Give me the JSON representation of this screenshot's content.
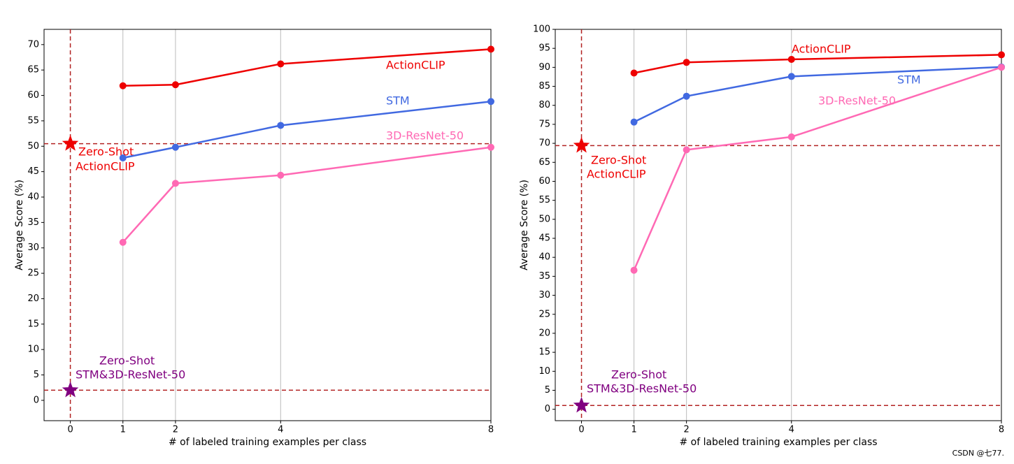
{
  "chart_data": [
    {
      "type": "line",
      "x_label": "# of labeled training examples per class",
      "y_label": "Average Score (%)",
      "xlim": [
        -0.5,
        8
      ],
      "xticks": [
        0,
        1,
        2,
        4,
        8
      ],
      "ylim": [
        -4,
        73
      ],
      "yticks": [
        0,
        5,
        10,
        15,
        20,
        25,
        30,
        35,
        40,
        45,
        50,
        55,
        60,
        65,
        70
      ],
      "grid_x": [
        1,
        2,
        4
      ],
      "x": [
        1,
        2,
        4,
        8
      ],
      "series": [
        {
          "name": "ActionCLIP",
          "color": "#ee0000",
          "values": [
            61.9,
            62.1,
            66.2,
            69.1
          ]
        },
        {
          "name": "STM",
          "color": "#4169e1",
          "values": [
            47.7,
            49.8,
            54.1,
            58.8
          ]
        },
        {
          "name": "3D-ResNet-50",
          "color": "#ff69b4",
          "values": [
            31.1,
            42.7,
            44.3,
            49.8
          ]
        }
      ],
      "zero_shot": [
        {
          "label": [
            "Zero-Shot",
            "ActionCLIP"
          ],
          "value": 50.5,
          "color": "#ee0000"
        },
        {
          "label": [
            "Zero-Shot",
            "STM&3D-ResNet-50"
          ],
          "value": 2,
          "color": "#800080"
        }
      ]
    },
    {
      "type": "line",
      "x_label": "# of labeled training examples per class",
      "y_label": "Average Score (%)",
      "xlim": [
        -0.5,
        8
      ],
      "xticks": [
        0,
        1,
        2,
        4,
        8
      ],
      "ylim": [
        -3,
        100
      ],
      "yticks": [
        0,
        5,
        10,
        15,
        20,
        25,
        30,
        35,
        40,
        45,
        50,
        55,
        60,
        65,
        70,
        75,
        80,
        85,
        90,
        95,
        100
      ],
      "grid_x": [
        1,
        2,
        4
      ],
      "x": [
        1,
        2,
        4,
        8
      ],
      "series": [
        {
          "name": "ActionCLIP",
          "color": "#ee0000",
          "values": [
            88.5,
            91.3,
            92.1,
            93.3
          ]
        },
        {
          "name": "STM",
          "color": "#4169e1",
          "values": [
            75.6,
            82.4,
            87.6,
            90.1
          ]
        },
        {
          "name": "3D-ResNet-50",
          "color": "#ff69b4",
          "values": [
            36.6,
            68.3,
            71.7,
            90.0
          ]
        }
      ],
      "zero_shot": [
        {
          "label": [
            "Zero-Shot",
            "ActionCLIP"
          ],
          "value": 69.4,
          "color": "#ee0000"
        },
        {
          "label": [
            "Zero-Shot",
            "STM&3D-ResNet-50"
          ],
          "value": 1.0,
          "color": "#800080"
        }
      ]
    }
  ],
  "watermark": "CSDN @七77."
}
